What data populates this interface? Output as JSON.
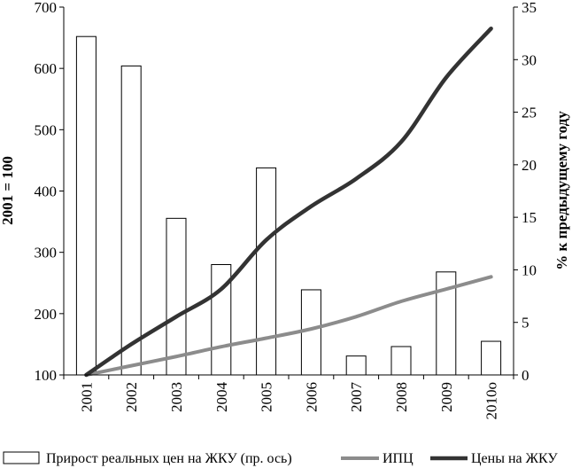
{
  "chart_data": {
    "type": "bar",
    "categories": [
      "2001",
      "2002",
      "2003",
      "2004",
      "2005",
      "2006",
      "2007",
      "2008",
      "2009",
      "2010о"
    ],
    "series": [
      {
        "name": "Прирост реальных цен на ЖКУ (пр. ось)",
        "type": "bar",
        "axis": "right",
        "values": [
          32.2,
          29.4,
          14.9,
          10.5,
          19.7,
          8.1,
          1.8,
          2.7,
          9.8,
          3.2
        ],
        "color": "#ffffff",
        "stroke": "#000000"
      },
      {
        "name": "ИПЦ",
        "type": "line",
        "axis": "left",
        "values": [
          100,
          115,
          130,
          146,
          160,
          175,
          195,
          220,
          240,
          260
        ],
        "color": "#8c8c8c"
      },
      {
        "name": "Цены на ЖКУ",
        "type": "line",
        "axis": "left",
        "values": [
          100,
          150,
          195,
          240,
          320,
          375,
          420,
          480,
          585,
          665
        ],
        "color": "#333333"
      }
    ],
    "ylabel": "2001 = 100",
    "y2label": "% к предыдущему году",
    "ylim": [
      100,
      700
    ],
    "y2lim": [
      0,
      35
    ],
    "yticks": [
      "100",
      "200",
      "300",
      "400",
      "500",
      "600",
      "700"
    ],
    "y2ticks": [
      "0",
      "5",
      "10",
      "15",
      "20",
      "25",
      "30",
      "35"
    ],
    "grid": false,
    "legend": "bottom"
  }
}
